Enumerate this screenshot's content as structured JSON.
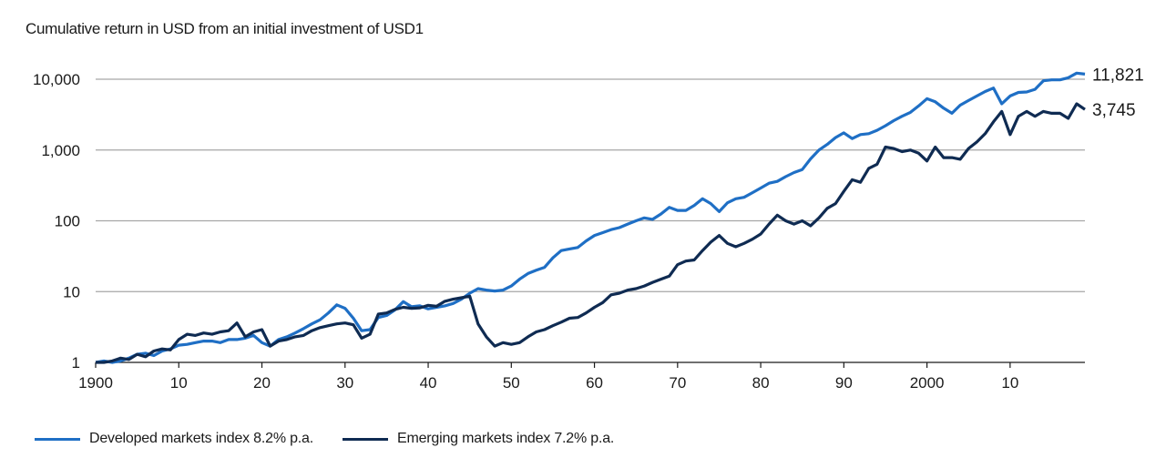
{
  "chart_data": {
    "type": "line",
    "title": "Cumulative return in USD from an initial investment of USD1",
    "yscale": "log",
    "ylim": [
      1,
      14000
    ],
    "xlim": [
      1900,
      2019
    ],
    "yticks": [
      {
        "value": 1,
        "label": "1"
      },
      {
        "value": 10,
        "label": "10"
      },
      {
        "value": 100,
        "label": "100"
      },
      {
        "value": 1000,
        "label": "1,000"
      },
      {
        "value": 10000,
        "label": "10,000"
      }
    ],
    "xticks": [
      {
        "value": 1900,
        "label": "1900"
      },
      {
        "value": 1910,
        "label": "10"
      },
      {
        "value": 1920,
        "label": "20"
      },
      {
        "value": 1930,
        "label": "30"
      },
      {
        "value": 1940,
        "label": "40"
      },
      {
        "value": 1950,
        "label": "50"
      },
      {
        "value": 1960,
        "label": "60"
      },
      {
        "value": 1970,
        "label": "70"
      },
      {
        "value": 1980,
        "label": "80"
      },
      {
        "value": 1990,
        "label": "90"
      },
      {
        "value": 2000,
        "label": "2000"
      },
      {
        "value": 2010,
        "label": "10"
      }
    ],
    "grid": true,
    "legend_position": "bottom",
    "series": [
      {
        "name": "Developed markets index 8.2% p.a.",
        "color": "#1f6fc5",
        "end_label": "11,821",
        "points": [
          [
            1900,
            1
          ],
          [
            1901,
            1.05
          ],
          [
            1902,
            1.0
          ],
          [
            1903,
            1.05
          ],
          [
            1904,
            1.15
          ],
          [
            1905,
            1.3
          ],
          [
            1906,
            1.35
          ],
          [
            1907,
            1.25
          ],
          [
            1908,
            1.45
          ],
          [
            1909,
            1.55
          ],
          [
            1910,
            1.75
          ],
          [
            1911,
            1.8
          ],
          [
            1912,
            1.9
          ],
          [
            1913,
            2.0
          ],
          [
            1914,
            2.0
          ],
          [
            1915,
            1.9
          ],
          [
            1916,
            2.1
          ],
          [
            1917,
            2.1
          ],
          [
            1918,
            2.2
          ],
          [
            1919,
            2.4
          ],
          [
            1920,
            1.9
          ],
          [
            1921,
            1.7
          ],
          [
            1922,
            2.1
          ],
          [
            1923,
            2.3
          ],
          [
            1924,
            2.6
          ],
          [
            1925,
            3.0
          ],
          [
            1926,
            3.5
          ],
          [
            1927,
            4.0
          ],
          [
            1928,
            5.0
          ],
          [
            1929,
            6.5
          ],
          [
            1930,
            5.8
          ],
          [
            1931,
            4.2
          ],
          [
            1932,
            2.8
          ],
          [
            1933,
            2.9
          ],
          [
            1934,
            4.3
          ],
          [
            1935,
            4.6
          ],
          [
            1936,
            5.5
          ],
          [
            1937,
            7.2
          ],
          [
            1938,
            6.1
          ],
          [
            1939,
            6.3
          ],
          [
            1940,
            5.7
          ],
          [
            1941,
            6.0
          ],
          [
            1942,
            6.3
          ],
          [
            1943,
            6.8
          ],
          [
            1944,
            7.8
          ],
          [
            1945,
            9.5
          ],
          [
            1946,
            11.0
          ],
          [
            1947,
            10.5
          ],
          [
            1948,
            10.2
          ],
          [
            1949,
            10.5
          ],
          [
            1950,
            12.0
          ],
          [
            1951,
            15.0
          ],
          [
            1952,
            18.0
          ],
          [
            1953,
            20.0
          ],
          [
            1954,
            22.0
          ],
          [
            1955,
            30.0
          ],
          [
            1956,
            38.0
          ],
          [
            1957,
            40.0
          ],
          [
            1958,
            42.0
          ],
          [
            1959,
            52.0
          ],
          [
            1960,
            62.0
          ],
          [
            1961,
            68.0
          ],
          [
            1962,
            75.0
          ],
          [
            1963,
            80.0
          ],
          [
            1964,
            90.0
          ],
          [
            1965,
            100.0
          ],
          [
            1966,
            110.0
          ],
          [
            1967,
            105.0
          ],
          [
            1968,
            125.0
          ],
          [
            1969,
            155.0
          ],
          [
            1970,
            140.0
          ],
          [
            1971,
            140.0
          ],
          [
            1972,
            165.0
          ],
          [
            1973,
            205.0
          ],
          [
            1974,
            175.0
          ],
          [
            1975,
            135.0
          ],
          [
            1976,
            180.0
          ],
          [
            1977,
            205.0
          ],
          [
            1978,
            215.0
          ],
          [
            1979,
            250.0
          ],
          [
            1980,
            290.0
          ],
          [
            1981,
            340.0
          ],
          [
            1982,
            360.0
          ],
          [
            1983,
            420.0
          ],
          [
            1984,
            480.0
          ],
          [
            1985,
            530.0
          ],
          [
            1986,
            750.0
          ],
          [
            1987,
            1000.0
          ],
          [
            1988,
            1200.0
          ],
          [
            1989,
            1500.0
          ],
          [
            1990,
            1750.0
          ],
          [
            1991,
            1450.0
          ],
          [
            1992,
            1650.0
          ],
          [
            1993,
            1700.0
          ],
          [
            1994,
            1900.0
          ],
          [
            1995,
            2200.0
          ],
          [
            1996,
            2600.0
          ],
          [
            1997,
            3000.0
          ],
          [
            1998,
            3400.0
          ],
          [
            1999,
            4200.0
          ],
          [
            2000,
            5300.0
          ],
          [
            2001,
            4800.0
          ],
          [
            2002,
            3900.0
          ],
          [
            2003,
            3300.0
          ],
          [
            2004,
            4300.0
          ],
          [
            2005,
            5000.0
          ],
          [
            2006,
            5800.0
          ],
          [
            2007,
            6700.0
          ],
          [
            2008,
            7500.0
          ],
          [
            2009,
            4500.0
          ],
          [
            2010,
            5800.0
          ],
          [
            2011,
            6500.0
          ],
          [
            2012,
            6600.0
          ],
          [
            2013,
            7200.0
          ],
          [
            2014,
            9500.0
          ],
          [
            2015,
            9800.0
          ],
          [
            2016,
            9800.0
          ],
          [
            2017,
            10500.0
          ],
          [
            2018,
            12200.0
          ],
          [
            2019,
            11821.0
          ]
        ]
      },
      {
        "name": "Emerging markets index 7.2% p.a.",
        "color": "#0f2b52",
        "end_label": "3,745",
        "points": [
          [
            1900,
            1
          ],
          [
            1901,
            1.0
          ],
          [
            1902,
            1.05
          ],
          [
            1903,
            1.15
          ],
          [
            1904,
            1.1
          ],
          [
            1905,
            1.3
          ],
          [
            1906,
            1.2
          ],
          [
            1907,
            1.45
          ],
          [
            1908,
            1.55
          ],
          [
            1909,
            1.5
          ],
          [
            1910,
            2.1
          ],
          [
            1911,
            2.5
          ],
          [
            1912,
            2.4
          ],
          [
            1913,
            2.6
          ],
          [
            1914,
            2.5
          ],
          [
            1915,
            2.7
          ],
          [
            1916,
            2.8
          ],
          [
            1917,
            3.6
          ],
          [
            1918,
            2.3
          ],
          [
            1919,
            2.7
          ],
          [
            1920,
            2.9
          ],
          [
            1921,
            1.7
          ],
          [
            1922,
            2.0
          ],
          [
            1923,
            2.1
          ],
          [
            1924,
            2.3
          ],
          [
            1925,
            2.4
          ],
          [
            1926,
            2.8
          ],
          [
            1927,
            3.1
          ],
          [
            1928,
            3.3
          ],
          [
            1929,
            3.5
          ],
          [
            1930,
            3.6
          ],
          [
            1931,
            3.4
          ],
          [
            1932,
            2.2
          ],
          [
            1933,
            2.5
          ],
          [
            1934,
            4.8
          ],
          [
            1935,
            5.0
          ],
          [
            1936,
            5.6
          ],
          [
            1937,
            6.0
          ],
          [
            1938,
            5.8
          ],
          [
            1939,
            5.9
          ],
          [
            1940,
            6.4
          ],
          [
            1941,
            6.2
          ],
          [
            1942,
            7.3
          ],
          [
            1943,
            7.8
          ],
          [
            1944,
            8.2
          ],
          [
            1945,
            8.6
          ],
          [
            1946,
            3.5
          ],
          [
            1947,
            2.3
          ],
          [
            1948,
            1.7
          ],
          [
            1949,
            1.9
          ],
          [
            1950,
            1.8
          ],
          [
            1951,
            1.9
          ],
          [
            1952,
            2.3
          ],
          [
            1953,
            2.7
          ],
          [
            1954,
            2.9
          ],
          [
            1955,
            3.3
          ],
          [
            1956,
            3.7
          ],
          [
            1957,
            4.2
          ],
          [
            1958,
            4.3
          ],
          [
            1959,
            5.0
          ],
          [
            1960,
            6.0
          ],
          [
            1961,
            7.0
          ],
          [
            1962,
            9.0
          ],
          [
            1963,
            9.5
          ],
          [
            1964,
            10.5
          ],
          [
            1965,
            11.0
          ],
          [
            1966,
            12.0
          ],
          [
            1967,
            13.5
          ],
          [
            1968,
            15.0
          ],
          [
            1969,
            16.5
          ],
          [
            1970,
            24.0
          ],
          [
            1971,
            27.0
          ],
          [
            1972,
            28.0
          ],
          [
            1973,
            38.0
          ],
          [
            1974,
            50.0
          ],
          [
            1975,
            62.0
          ],
          [
            1976,
            48.0
          ],
          [
            1977,
            43.0
          ],
          [
            1978,
            48.0
          ],
          [
            1979,
            55.0
          ],
          [
            1980,
            65.0
          ],
          [
            1981,
            90.0
          ],
          [
            1982,
            120.0
          ],
          [
            1983,
            100.0
          ],
          [
            1984,
            90.0
          ],
          [
            1985,
            100.0
          ],
          [
            1986,
            85.0
          ],
          [
            1987,
            110.0
          ],
          [
            1988,
            150.0
          ],
          [
            1989,
            175.0
          ],
          [
            1990,
            260.0
          ],
          [
            1991,
            380.0
          ],
          [
            1992,
            350.0
          ],
          [
            1993,
            550.0
          ],
          [
            1994,
            630.0
          ],
          [
            1995,
            1100.0
          ],
          [
            1996,
            1050.0
          ],
          [
            1997,
            950.0
          ],
          [
            1998,
            1000.0
          ],
          [
            1999,
            900.0
          ],
          [
            2000,
            700.0
          ],
          [
            2001,
            1100.0
          ],
          [
            2002,
            780.0
          ],
          [
            2003,
            780.0
          ],
          [
            2004,
            740.0
          ],
          [
            2005,
            1050.0
          ],
          [
            2006,
            1300.0
          ],
          [
            2007,
            1700.0
          ],
          [
            2008,
            2500.0
          ],
          [
            2009,
            3500.0
          ],
          [
            2010,
            1650.0
          ],
          [
            2011,
            3000.0
          ],
          [
            2012,
            3500.0
          ],
          [
            2013,
            3000.0
          ],
          [
            2014,
            3500.0
          ],
          [
            2015,
            3300.0
          ],
          [
            2016,
            3300.0
          ],
          [
            2017,
            2800.0
          ],
          [
            2018,
            4500.0
          ],
          [
            2019,
            3745.0
          ]
        ]
      }
    ]
  }
}
